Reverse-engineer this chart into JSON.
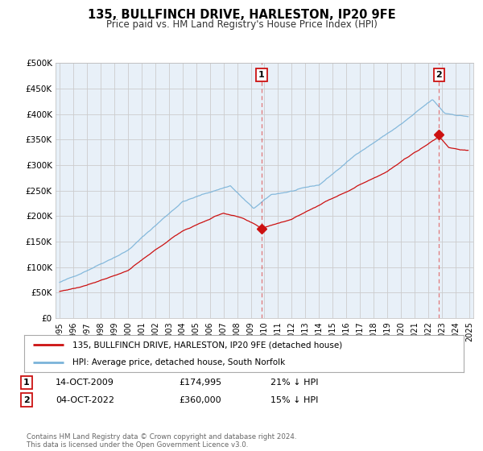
{
  "title": "135, BULLFINCH DRIVE, HARLESTON, IP20 9FE",
  "subtitle": "Price paid vs. HM Land Registry's House Price Index (HPI)",
  "background_color": "#ffffff",
  "plot_bg_color": "#e8f0f8",
  "grid_color": "#cccccc",
  "hpi_color": "#7ab3d9",
  "price_color": "#cc1111",
  "marker_color": "#cc1111",
  "sale1_price": 174995,
  "sale2_price": 360000,
  "ylim": [
    0,
    500000
  ],
  "ytick_vals": [
    0,
    50000,
    100000,
    150000,
    200000,
    250000,
    300000,
    350000,
    400000,
    450000,
    500000
  ],
  "ytick_labels": [
    "£0",
    "£50K",
    "£100K",
    "£150K",
    "£200K",
    "£250K",
    "£300K",
    "£350K",
    "£400K",
    "£450K",
    "£500K"
  ],
  "legend_line1": "135, BULLFINCH DRIVE, HARLESTON, IP20 9FE (detached house)",
  "legend_line2": "HPI: Average price, detached house, South Norfolk",
  "copyright": "Contains HM Land Registry data © Crown copyright and database right 2024.\nThis data is licensed under the Open Government Licence v3.0.",
  "xstart_year": 1995,
  "xend_year": 2025
}
